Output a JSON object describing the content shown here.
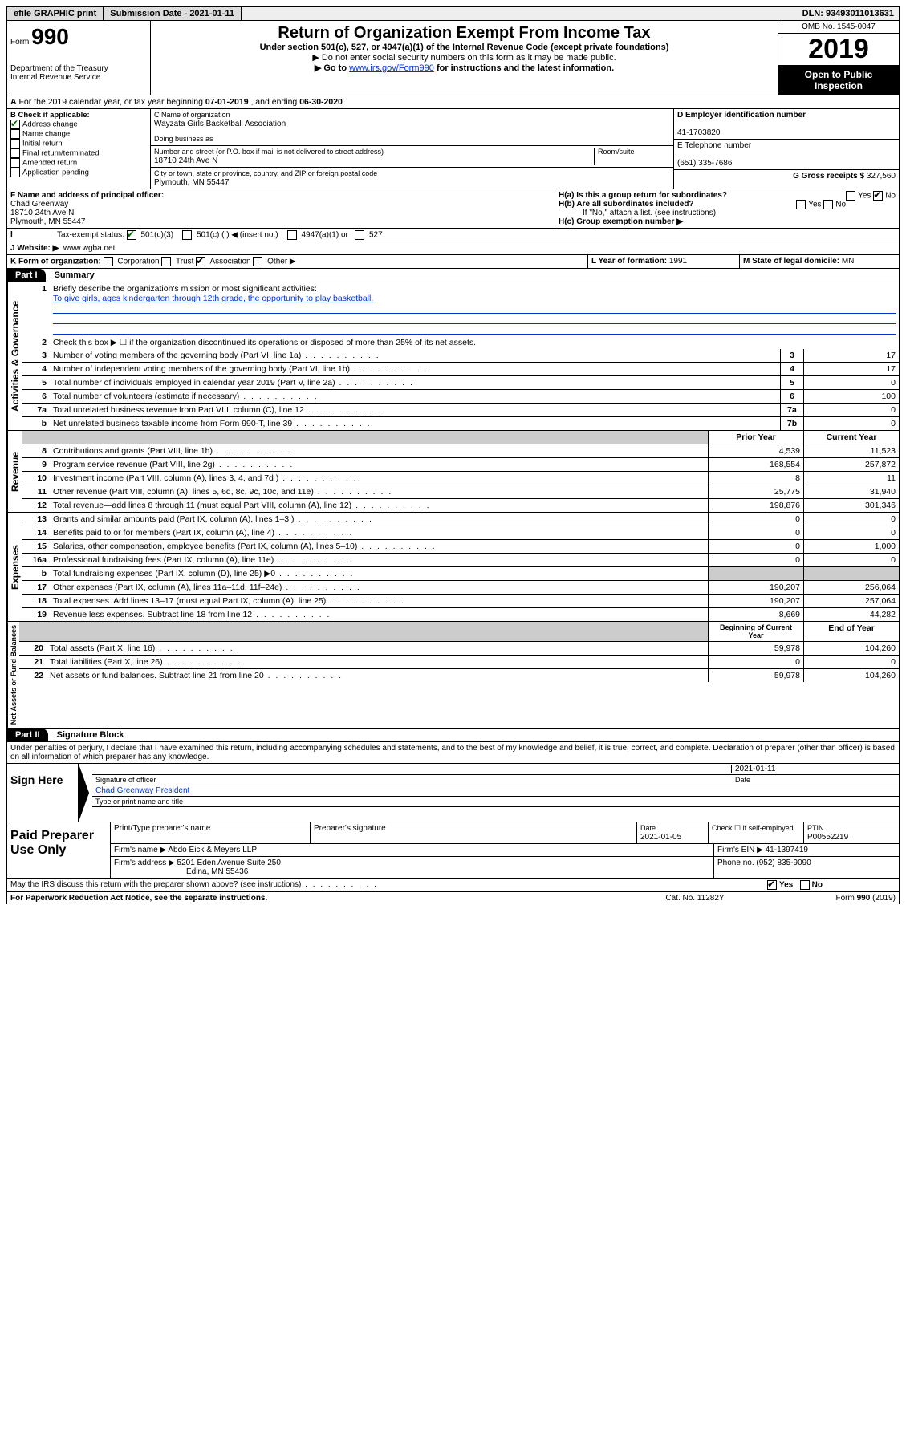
{
  "topbar": {
    "efile": "efile GRAPHIC print",
    "submission_label": "Submission Date - 2021-01-11",
    "dln": "DLN: 93493011013631"
  },
  "header": {
    "form_label": "Form",
    "form_no": "990",
    "dept": "Department of the Treasury\nInternal Revenue Service",
    "title": "Return of Organization Exempt From Income Tax",
    "subtitle1": "Under section 501(c), 527, or 4947(a)(1) of the Internal Revenue Code (except private foundations)",
    "subtitle2": "▶ Do not enter social security numbers on this form as it may be made public.",
    "subtitle3_pre": "▶ Go to ",
    "subtitle3_link": "www.irs.gov/Form990",
    "subtitle3_post": " for instructions and the latest information.",
    "omb": "OMB No. 1545-0047",
    "year": "2019",
    "open": "Open to Public Inspection"
  },
  "section_a": {
    "text_pre": "For the 2019 calendar year, or tax year beginning ",
    "begin": "07-01-2019",
    "mid": " , and ending ",
    "end": "06-30-2020"
  },
  "b": {
    "label": "B Check if applicable:",
    "addr_change": "Address change",
    "name_change": "Name change",
    "initial": "Initial return",
    "final": "Final return/terminated",
    "amended": "Amended return",
    "app_pending": "Application pending"
  },
  "c": {
    "name_label": "C Name of organization",
    "name": "Wayzata Girls Basketball Association",
    "dba_label": "Doing business as",
    "addr_label": "Number and street (or P.O. box if mail is not delivered to street address)",
    "room_label": "Room/suite",
    "addr": "18710 24th Ave N",
    "city_label": "City or town, state or province, country, and ZIP or foreign postal code",
    "city": "Plymouth, MN  55447"
  },
  "d": {
    "ein_label": "D Employer identification number",
    "ein": "41-1703820",
    "phone_label": "E Telephone number",
    "phone": "(651) 335-7686",
    "gross_label": "G Gross receipts $ ",
    "gross": "327,560"
  },
  "f": {
    "label": "F  Name and address of principal officer:",
    "name": "Chad Greenway",
    "addr1": "18710 24th Ave N",
    "addr2": "Plymouth, MN  55447"
  },
  "h": {
    "ha": "H(a)  Is this a group return for subordinates?",
    "hb": "H(b)  Are all subordinates included?",
    "hb_note": "If \"No,\" attach a list. (see instructions)",
    "hc": "H(c)  Group exemption number ▶",
    "yes": "Yes",
    "no": "No"
  },
  "i": {
    "label": "Tax-exempt status:",
    "c3": "501(c)(3)",
    "c": "501(c) (  ) ◀ (insert no.)",
    "a1": "4947(a)(1) or",
    "s527": "527"
  },
  "j": {
    "label": "J   Website: ▶",
    "val": "www.wgba.net"
  },
  "k": {
    "label": "K Form of organization:",
    "corp": "Corporation",
    "trust": "Trust",
    "assoc": "Association",
    "other": "Other ▶"
  },
  "l": {
    "label": "L Year of formation: ",
    "val": "1991"
  },
  "m": {
    "label": "M State of legal domicile: ",
    "val": "MN"
  },
  "part1": {
    "hdr": "Part I",
    "title": "Summary",
    "q1": "Briefly describe the organization's mission or most significant activities:",
    "mission": "To give girls, ages kindergarten through 12th grade, the opportunity to play basketball.",
    "q2": "Check this box ▶ ☐  if the organization discontinued its operations or disposed of more than 25% of its net assets.",
    "lines_gov": [
      {
        "n": "3",
        "d": "Number of voting members of the governing body (Part VI, line 1a)",
        "box": "3",
        "v": "17"
      },
      {
        "n": "4",
        "d": "Number of independent voting members of the governing body (Part VI, line 1b)",
        "box": "4",
        "v": "17"
      },
      {
        "n": "5",
        "d": "Total number of individuals employed in calendar year 2019 (Part V, line 2a)",
        "box": "5",
        "v": "0"
      },
      {
        "n": "6",
        "d": "Total number of volunteers (estimate if necessary)",
        "box": "6",
        "v": "100"
      },
      {
        "n": "7a",
        "d": "Total unrelated business revenue from Part VIII, column (C), line 12",
        "box": "7a",
        "v": "0"
      },
      {
        "n": "b",
        "d": "Net unrelated business taxable income from Form 990-T, line 39",
        "box": "7b",
        "v": "0"
      }
    ],
    "col_prior": "Prior Year",
    "col_curr": "Current Year",
    "revenue": [
      {
        "n": "8",
        "d": "Contributions and grants (Part VIII, line 1h)",
        "p": "4,539",
        "c": "11,523"
      },
      {
        "n": "9",
        "d": "Program service revenue (Part VIII, line 2g)",
        "p": "168,554",
        "c": "257,872"
      },
      {
        "n": "10",
        "d": "Investment income (Part VIII, column (A), lines 3, 4, and 7d )",
        "p": "8",
        "c": "11"
      },
      {
        "n": "11",
        "d": "Other revenue (Part VIII, column (A), lines 5, 6d, 8c, 9c, 10c, and 11e)",
        "p": "25,775",
        "c": "31,940"
      },
      {
        "n": "12",
        "d": "Total revenue—add lines 8 through 11 (must equal Part VIII, column (A), line 12)",
        "p": "198,876",
        "c": "301,346"
      }
    ],
    "expenses": [
      {
        "n": "13",
        "d": "Grants and similar amounts paid (Part IX, column (A), lines 1–3 )",
        "p": "0",
        "c": "0"
      },
      {
        "n": "14",
        "d": "Benefits paid to or for members (Part IX, column (A), line 4)",
        "p": "0",
        "c": "0"
      },
      {
        "n": "15",
        "d": "Salaries, other compensation, employee benefits (Part IX, column (A), lines 5–10)",
        "p": "0",
        "c": "1,000"
      },
      {
        "n": "16a",
        "d": "Professional fundraising fees (Part IX, column (A), line 11e)",
        "p": "0",
        "c": "0"
      },
      {
        "n": "b",
        "d": "Total fundraising expenses (Part IX, column (D), line 25) ▶0",
        "p": "",
        "c": "",
        "shade": true
      },
      {
        "n": "17",
        "d": "Other expenses (Part IX, column (A), lines 11a–11d, 11f–24e)",
        "p": "190,207",
        "c": "256,064"
      },
      {
        "n": "18",
        "d": "Total expenses. Add lines 13–17 (must equal Part IX, column (A), line 25)",
        "p": "190,207",
        "c": "257,064"
      },
      {
        "n": "19",
        "d": "Revenue less expenses. Subtract line 18 from line 12",
        "p": "8,669",
        "c": "44,282"
      }
    ],
    "col_begin": "Beginning of Current Year",
    "col_end": "End of Year",
    "netassets": [
      {
        "n": "20",
        "d": "Total assets (Part X, line 16)",
        "p": "59,978",
        "c": "104,260"
      },
      {
        "n": "21",
        "d": "Total liabilities (Part X, line 26)",
        "p": "0",
        "c": "0"
      },
      {
        "n": "22",
        "d": "Net assets or fund balances. Subtract line 21 from line 20",
        "p": "59,978",
        "c": "104,260"
      }
    ],
    "vlabels": {
      "gov": "Activities & Governance",
      "rev": "Revenue",
      "exp": "Expenses",
      "net": "Net Assets or Fund Balances"
    }
  },
  "part2": {
    "hdr": "Part II",
    "title": "Signature Block",
    "perjury": "Under penalties of perjury, I declare that I have examined this return, including accompanying schedules and statements, and to the best of my knowledge and belief, it is true, correct, and complete. Declaration of preparer (other than officer) is based on all information of which preparer has any knowledge.",
    "sign_here": "Sign Here",
    "sig_officer": "Signature of officer",
    "sig_date": "2021-01-11",
    "date_label": "Date",
    "officer_name": "Chad Greenway  President",
    "type_name": "Type or print name and title",
    "paid_prep": "Paid Preparer Use Only",
    "prep_name_label": "Print/Type preparer's name",
    "prep_sig_label": "Preparer's signature",
    "prep_date_label": "Date",
    "prep_date": "2021-01-05",
    "check_self": "Check ☐ if self-employed",
    "ptin_label": "PTIN",
    "ptin": "P00552219",
    "firm_name_label": "Firm's name    ▶ ",
    "firm_name": "Abdo Eick & Meyers LLP",
    "firm_ein_label": "Firm's EIN ▶ ",
    "firm_ein": "41-1397419",
    "firm_addr_label": "Firm's address ▶ ",
    "firm_addr1": "5201 Eden Avenue Suite 250",
    "firm_addr2": "Edina, MN  55436",
    "firm_phone_label": "Phone no. ",
    "firm_phone": "(952) 835-9090",
    "discuss": "May the IRS discuss this return with the preparer shown above? (see instructions)",
    "paperwork": "For Paperwork Reduction Act Notice, see the separate instructions.",
    "cat": "Cat. No. 11282Y",
    "form_foot": "Form 990 (2019)"
  }
}
